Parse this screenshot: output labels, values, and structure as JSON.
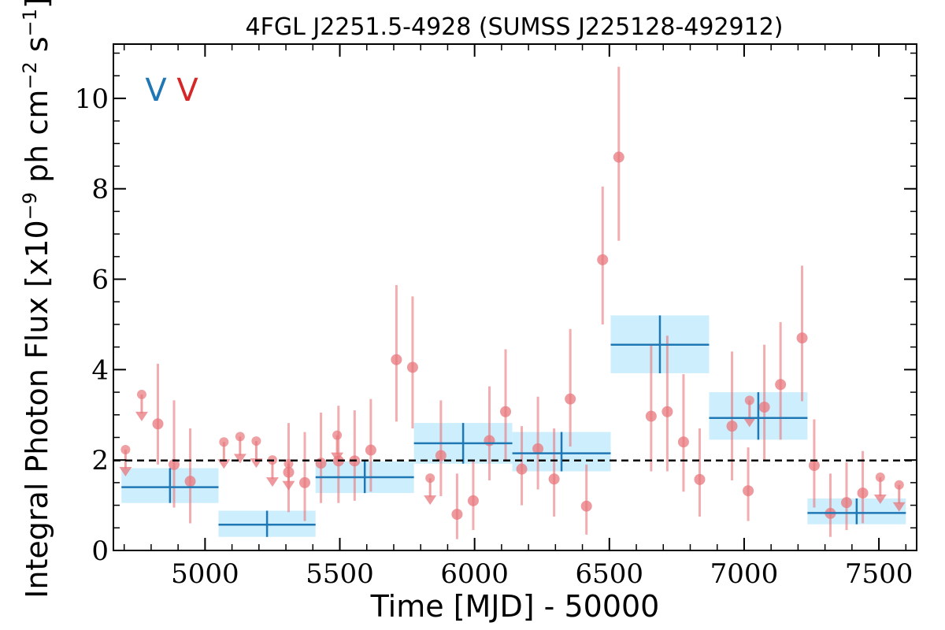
{
  "chart_data": {
    "type": "scatter",
    "title": "4FGL J2251.5-4928 (SUMSS J225128-492912)",
    "xlabel": "Time [MJD] - 50000",
    "ylabel": "Integral Photon Flux [x10",
    "ylabel_exp": "−9",
    "ylabel_unit": " ph cm",
    "ylabel_unit_exp": "−2",
    "ylabel_s": " s",
    "ylabel_s_exp": "−1",
    "ylabel_close": "]",
    "xlim": [
      4660,
      7640
    ],
    "ylim": [
      0,
      11.2
    ],
    "x_ticks": [
      5000,
      5500,
      6000,
      6500,
      7000,
      7500
    ],
    "x_tick_labels": [
      "5000",
      "5500",
      "6000",
      "6500",
      "7000",
      "7500"
    ],
    "y_ticks": [
      0,
      2,
      4,
      6,
      8,
      10
    ],
    "y_tick_labels": [
      "0",
      "2",
      "4",
      "6",
      "8",
      "10"
    ],
    "reference_line": {
      "y": 1.99,
      "style": "dashed",
      "color": "#000000"
    },
    "markers": [
      {
        "label": "V",
        "color": "#1f77b4"
      },
      {
        "label": "V",
        "color": "#d62728"
      }
    ],
    "series": [
      {
        "type": "upper_limits",
        "color": "#e8777c",
        "points": [
          {
            "x": 4705,
            "y": 2.23
          },
          {
            "x": 4765,
            "y": 3.45
          },
          {
            "x": 5070,
            "y": 2.4
          },
          {
            "x": 5130,
            "y": 2.52
          },
          {
            "x": 5190,
            "y": 2.42
          },
          {
            "x": 5250,
            "y": 2.0
          },
          {
            "x": 5310,
            "y": 1.92
          },
          {
            "x": 5490,
            "y": 2.55
          },
          {
            "x": 5835,
            "y": 1.6
          },
          {
            "x": 7020,
            "y": 3.32
          },
          {
            "x": 7505,
            "y": 1.62
          },
          {
            "x": 7575,
            "y": 1.45
          }
        ]
      },
      {
        "type": "measurements",
        "color": "#e8777c",
        "points": [
          {
            "x": 4825,
            "y": 2.8,
            "lo": 1.9,
            "hi": 4.13
          },
          {
            "x": 4885,
            "y": 1.9,
            "lo": 0.95,
            "hi": 3.32
          },
          {
            "x": 4945,
            "y": 1.53,
            "lo": 0.6,
            "hi": 2.7
          },
          {
            "x": 5310,
            "y": 1.73,
            "lo": 0.85,
            "hi": 2.82
          },
          {
            "x": 5370,
            "y": 1.5,
            "lo": 0.65,
            "hi": 2.62
          },
          {
            "x": 5430,
            "y": 1.93,
            "lo": 1.05,
            "hi": 3.05
          },
          {
            "x": 5495,
            "y": 1.98,
            "lo": 1.05,
            "hi": 3.2
          },
          {
            "x": 5555,
            "y": 1.98,
            "lo": 1.1,
            "hi": 3.1
          },
          {
            "x": 5615,
            "y": 2.22,
            "lo": 1.3,
            "hi": 3.35
          },
          {
            "x": 5710,
            "y": 4.22,
            "lo": 2.85,
            "hi": 5.87
          },
          {
            "x": 5770,
            "y": 4.05,
            "lo": 2.7,
            "hi": 5.62
          },
          {
            "x": 5875,
            "y": 2.1,
            "lo": 1.2,
            "hi": 3.32
          },
          {
            "x": 5935,
            "y": 0.8,
            "lo": 0.25,
            "hi": 1.7
          },
          {
            "x": 5995,
            "y": 1.1,
            "lo": 0.45,
            "hi": 2.0
          },
          {
            "x": 6055,
            "y": 2.43,
            "lo": 1.55,
            "hi": 3.63
          },
          {
            "x": 6115,
            "y": 3.07,
            "lo": 2.0,
            "hi": 4.45
          },
          {
            "x": 6175,
            "y": 1.8,
            "lo": 1.0,
            "hi": 2.75
          },
          {
            "x": 6235,
            "y": 2.25,
            "lo": 1.35,
            "hi": 3.4
          },
          {
            "x": 6295,
            "y": 1.58,
            "lo": 0.75,
            "hi": 2.7
          },
          {
            "x": 6355,
            "y": 3.35,
            "lo": 2.3,
            "hi": 4.9
          },
          {
            "x": 6415,
            "y": 0.98,
            "lo": 0.35,
            "hi": 1.9
          },
          {
            "x": 6475,
            "y": 6.43,
            "lo": 5.0,
            "hi": 8.05
          },
          {
            "x": 6535,
            "y": 8.7,
            "lo": 6.85,
            "hi": 10.7
          },
          {
            "x": 6655,
            "y": 2.97,
            "lo": 1.75,
            "hi": 4.55
          },
          {
            "x": 6715,
            "y": 3.07,
            "lo": 1.75,
            "hi": 4.75
          },
          {
            "x": 6775,
            "y": 2.4,
            "lo": 1.3,
            "hi": 3.9
          },
          {
            "x": 6835,
            "y": 1.57,
            "lo": 0.75,
            "hi": 2.7
          },
          {
            "x": 6955,
            "y": 2.75,
            "lo": 1.55,
            "hi": 4.4
          },
          {
            "x": 7015,
            "y": 1.32,
            "lo": 0.65,
            "hi": 2.28
          },
          {
            "x": 7075,
            "y": 3.17,
            "lo": 2.0,
            "hi": 4.55
          },
          {
            "x": 7135,
            "y": 3.67,
            "lo": 2.45,
            "hi": 5.05
          },
          {
            "x": 7215,
            "y": 4.7,
            "lo": 3.3,
            "hi": 6.3
          },
          {
            "x": 7260,
            "y": 1.88,
            "lo": 0.95,
            "hi": 2.9
          },
          {
            "x": 7320,
            "y": 0.82,
            "lo": 0.3,
            "hi": 1.7
          },
          {
            "x": 7380,
            "y": 1.06,
            "lo": 0.45,
            "hi": 1.95
          },
          {
            "x": 7440,
            "y": 1.27,
            "lo": 0.6,
            "hi": 2.2
          }
        ]
      },
      {
        "type": "bins",
        "color": "#1f77b4",
        "band_color": "#c8ecfd",
        "bins": [
          {
            "x0": 4690,
            "x1": 5050,
            "y": 1.4,
            "lo": 1.05,
            "hi": 1.82
          },
          {
            "x0": 5050,
            "x1": 5410,
            "y": 0.57,
            "lo": 0.3,
            "hi": 0.88
          },
          {
            "x0": 5410,
            "x1": 5775,
            "y": 1.62,
            "lo": 1.27,
            "hi": 1.97
          },
          {
            "x0": 5775,
            "x1": 6140,
            "y": 2.37,
            "lo": 1.92,
            "hi": 2.82
          },
          {
            "x0": 6140,
            "x1": 6505,
            "y": 2.15,
            "lo": 1.75,
            "hi": 2.62
          },
          {
            "x0": 6505,
            "x1": 6870,
            "y": 4.55,
            "lo": 3.92,
            "hi": 5.2
          },
          {
            "x0": 6870,
            "x1": 7235,
            "y": 2.93,
            "lo": 2.45,
            "hi": 3.5
          },
          {
            "x0": 7235,
            "x1": 7600,
            "y": 0.83,
            "lo": 0.58,
            "hi": 1.15
          }
        ]
      }
    ]
  }
}
